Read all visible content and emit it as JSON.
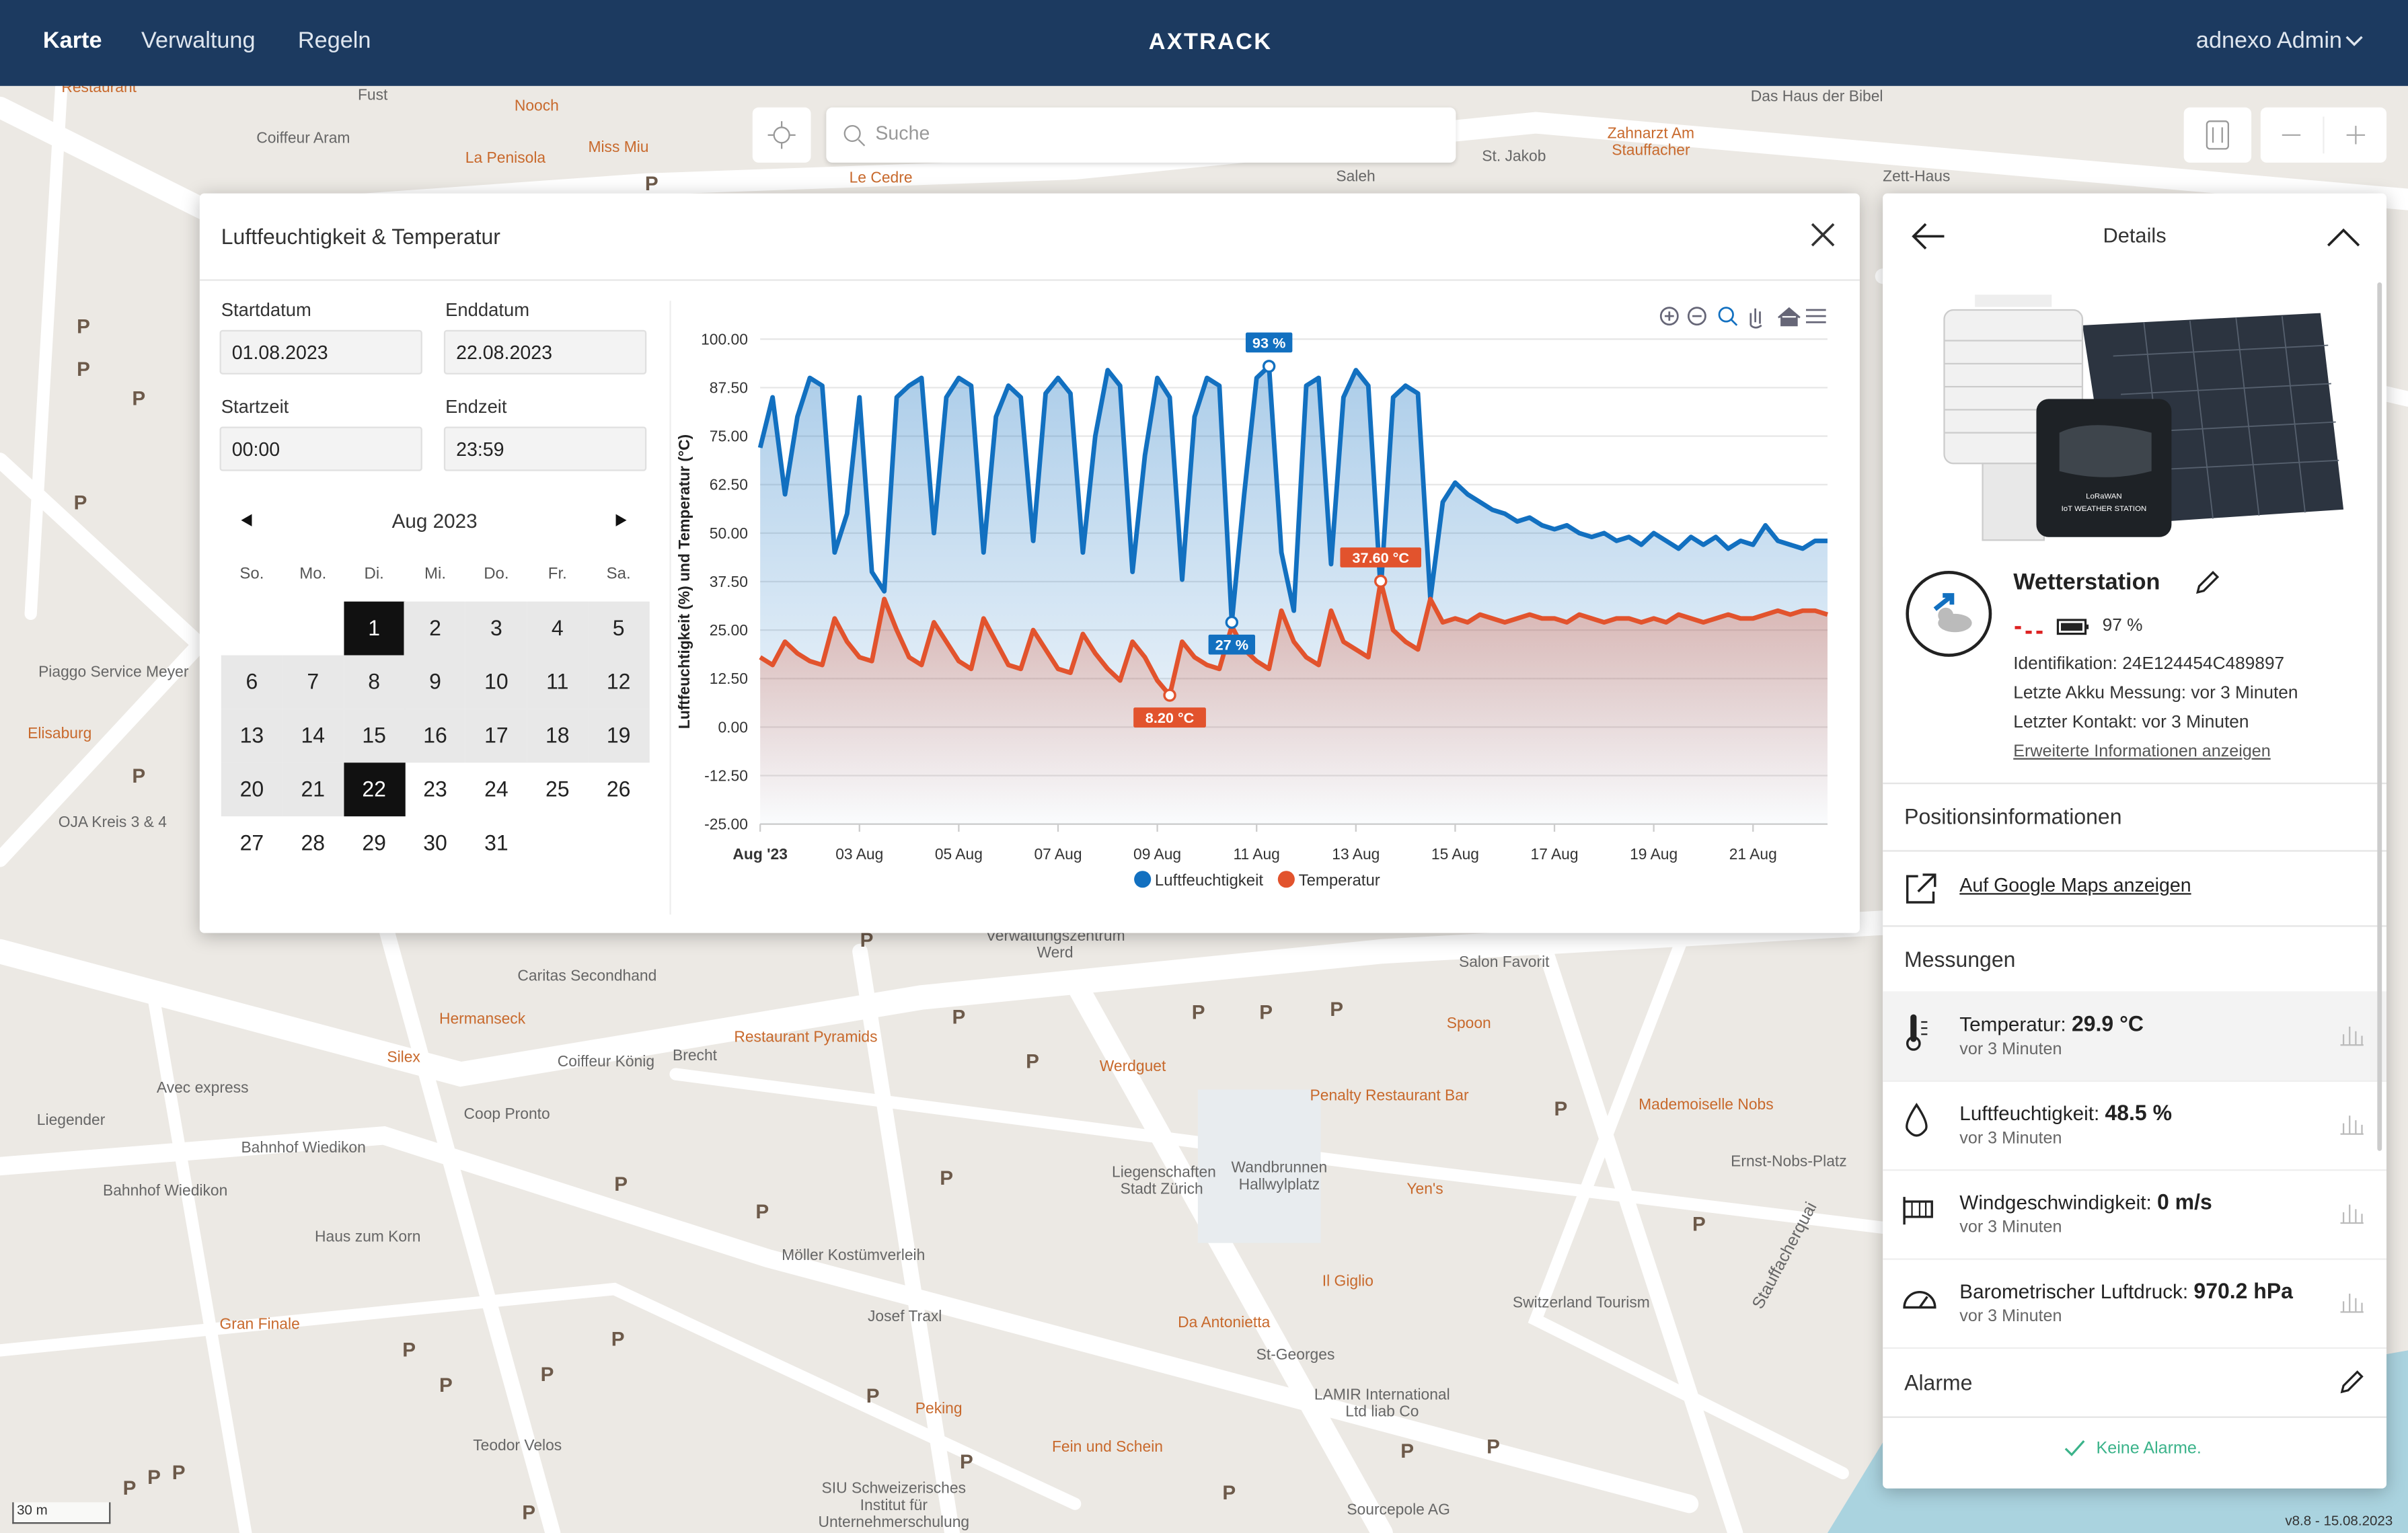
{
  "nav": {
    "items": [
      "Karte",
      "Verwaltung",
      "Regeln"
    ],
    "logo": "AXTRACK",
    "user": "adnexo Admin"
  },
  "search": {
    "placeholder": "Suche"
  },
  "map": {
    "labels": [
      "Restaurant",
      "Fust",
      "Nooch",
      "Coiffeur Aram",
      "La Penisola",
      "Miss Miu",
      "Le Cedre",
      "Saleh",
      "St. Jakob",
      "Zahnarzt Am Stauffacher",
      "Das Haus der Bibel",
      "Zett-Haus",
      "Piaggo Service Meyer",
      "Elisaburg",
      "OJA Kreis 3 & 4",
      "Verwaltungszentrum Werd",
      "Caritas Secondhand",
      "Hermanseck",
      "Silex",
      "Coiffeur König",
      "Brecht",
      "Restaurant Pyramids",
      "Werdguet",
      "Salon Favorit",
      "Spoon",
      "Avec express",
      "Liegender",
      "Coop Pronto",
      "Penalty Restaurant Bar",
      "Mademoiselle Nobs",
      "Bahnhof Wiedikon",
      "Bahnhof Wiedikon",
      "Liegenschaften Stadt Zürich",
      "Wandbrunnen Hallwylplatz",
      "Yen's",
      "Ernst-Nobs-Platz",
      "Haus zum Korn",
      "Möller Kostümverleih",
      "Il Giglio",
      "Switzerland Tourism",
      "Josef Traxl",
      "Gran Finale",
      "Da Antonietta",
      "St-Georges",
      "LAMIR International Ltd liab Co",
      "Peking",
      "Teodor Velos",
      "Fein und Schein",
      "SIU Schweizerisches Institut für Unternehmerschulung",
      "Sourcepole AG",
      "Stauffacherquai"
    ],
    "parking": "P",
    "scale": "30 m",
    "version": "v8.8 - 15.08.2023"
  },
  "modal": {
    "title": "Luftfeuchtigkeit & Temperatur",
    "start_date_label": "Startdatum",
    "start_date": "01.08.2023",
    "end_date_label": "Enddatum",
    "end_date": "22.08.2023",
    "start_time_label": "Startzeit",
    "start_time": "00:00",
    "end_time_label": "Endzeit",
    "end_time": "23:59",
    "calendar": {
      "month": "Aug 2023",
      "weekdays": [
        "So.",
        "Mo.",
        "Di.",
        "Mi.",
        "Do.",
        "Fr.",
        "Sa."
      ],
      "days": [
        1,
        2,
        3,
        4,
        5,
        6,
        7,
        8,
        9,
        10,
        11,
        12,
        13,
        14,
        15,
        16,
        17,
        18,
        19,
        20,
        21,
        22,
        23,
        24,
        25,
        26,
        27,
        28,
        29,
        30,
        31
      ],
      "selected_range": [
        1,
        22
      ]
    }
  },
  "chart_data": {
    "type": "line",
    "y_label": "Luftfeuchtigkeit (%) und Temperatur (°C)",
    "x": [
      "2023-08-01T00:00",
      "2023-08-01T06:00",
      "2023-08-01T12:00",
      "2023-08-01T18:00",
      "2023-08-02T00:00",
      "2023-08-02T06:00",
      "2023-08-02T12:00",
      "2023-08-02T18:00",
      "2023-08-03T00:00",
      "2023-08-03T06:00",
      "2023-08-03T12:00",
      "2023-08-03T18:00",
      "2023-08-04T00:00",
      "2023-08-04T06:00",
      "2023-08-04T12:00",
      "2023-08-04T18:00",
      "2023-08-05T00:00",
      "2023-08-05T06:00",
      "2023-08-05T12:00",
      "2023-08-05T18:00",
      "2023-08-06T00:00",
      "2023-08-06T06:00",
      "2023-08-06T12:00",
      "2023-08-06T18:00",
      "2023-08-07T00:00",
      "2023-08-07T06:00",
      "2023-08-07T12:00",
      "2023-08-07T18:00",
      "2023-08-08T00:00",
      "2023-08-08T06:00",
      "2023-08-08T12:00",
      "2023-08-08T18:00",
      "2023-08-09T00:00",
      "2023-08-09T06:00",
      "2023-08-09T12:00",
      "2023-08-09T18:00",
      "2023-08-10T00:00",
      "2023-08-10T06:00",
      "2023-08-10T12:00",
      "2023-08-10T18:00",
      "2023-08-11T00:00",
      "2023-08-11T06:00",
      "2023-08-11T12:00",
      "2023-08-11T18:00",
      "2023-08-12T00:00",
      "2023-08-12T06:00",
      "2023-08-12T12:00",
      "2023-08-12T18:00",
      "2023-08-13T00:00",
      "2023-08-13T06:00",
      "2023-08-13T12:00",
      "2023-08-13T18:00",
      "2023-08-14T00:00",
      "2023-08-14T06:00",
      "2023-08-14T12:00",
      "2023-08-14T18:00",
      "2023-08-15T00:00",
      "2023-08-15T06:00",
      "2023-08-15T12:00",
      "2023-08-15T18:00",
      "2023-08-16T00:00",
      "2023-08-16T06:00",
      "2023-08-16T12:00",
      "2023-08-16T18:00",
      "2023-08-17T00:00",
      "2023-08-17T06:00",
      "2023-08-17T12:00",
      "2023-08-17T18:00",
      "2023-08-18T00:00",
      "2023-08-18T06:00",
      "2023-08-18T12:00",
      "2023-08-18T18:00",
      "2023-08-19T00:00",
      "2023-08-19T06:00",
      "2023-08-19T12:00",
      "2023-08-19T18:00",
      "2023-08-20T00:00",
      "2023-08-20T06:00",
      "2023-08-20T12:00",
      "2023-08-20T18:00",
      "2023-08-21T00:00",
      "2023-08-21T06:00",
      "2023-08-21T12:00",
      "2023-08-21T18:00",
      "2023-08-22T00:00",
      "2023-08-22T06:00",
      "2023-08-22T12:00"
    ],
    "series": [
      {
        "name": "Luftfeuchtigkeit",
        "color": "#1270c0",
        "values": [
          72,
          85,
          60,
          80,
          90,
          88,
          45,
          55,
          85,
          40,
          35,
          85,
          88,
          90,
          50,
          85,
          90,
          88,
          45,
          80,
          88,
          85,
          48,
          86,
          90,
          86,
          45,
          75,
          92,
          88,
          40,
          70,
          90,
          85,
          38,
          80,
          90,
          88,
          27,
          60,
          90,
          93,
          45,
          30,
          88,
          90,
          42,
          85,
          92,
          88,
          35,
          85,
          88,
          86,
          33,
          58,
          63,
          60,
          58,
          56,
          55,
          53,
          54,
          52,
          51,
          52,
          50,
          49,
          50,
          48,
          49,
          47,
          50,
          48,
          46,
          49,
          47,
          49,
          46,
          48,
          47,
          52,
          48,
          47,
          46,
          48,
          48
        ]
      },
      {
        "name": "Temperatur",
        "color": "#e2532d",
        "values": [
          18,
          16,
          22,
          19,
          17,
          16,
          28,
          22,
          18,
          17,
          33,
          25,
          18,
          16,
          27,
          22,
          17,
          15,
          28,
          22,
          16,
          15,
          25,
          20,
          15,
          14,
          24,
          19,
          15,
          12,
          22,
          18,
          12,
          8.2,
          22,
          18,
          16,
          15,
          26,
          20,
          17,
          15,
          30,
          22,
          18,
          16,
          30,
          22,
          20,
          18,
          37.6,
          25,
          22,
          20,
          33,
          27,
          28,
          27,
          29,
          28,
          27,
          28,
          29,
          28,
          28,
          27,
          29,
          28,
          27,
          28,
          28,
          27,
          28,
          27,
          29,
          28,
          27,
          28,
          29,
          28,
          28,
          29,
          30,
          29,
          30,
          30,
          29
        ]
      }
    ],
    "annotations": [
      {
        "series": 0,
        "x": "2023-08-11T06:00",
        "value": 93,
        "label": "93 %"
      },
      {
        "series": 0,
        "x": "2023-08-10T12:00",
        "value": 27,
        "label": "27 %"
      },
      {
        "series": 1,
        "x": "2023-08-09T06:00",
        "value": 8.2,
        "label": "8.20 °C"
      },
      {
        "series": 1,
        "x": "2023-08-13T12:00",
        "value": 37.6,
        "label": "37.60 °C"
      }
    ],
    "xlim": [
      "2023-08-01T00:00",
      "2023-08-22T12:00"
    ],
    "xticks": [
      {
        "value": "2023-08-01T00:00",
        "label": "Aug '23"
      },
      {
        "value": "2023-08-03T00:00",
        "label": "03 Aug"
      },
      {
        "value": "2023-08-05T00:00",
        "label": "05 Aug"
      },
      {
        "value": "2023-08-07T00:00",
        "label": "07 Aug"
      },
      {
        "value": "2023-08-09T00:00",
        "label": "09 Aug"
      },
      {
        "value": "2023-08-11T00:00",
        "label": "11 Aug"
      },
      {
        "value": "2023-08-13T00:00",
        "label": "13 Aug"
      },
      {
        "value": "2023-08-15T00:00",
        "label": "15 Aug"
      },
      {
        "value": "2023-08-17T00:00",
        "label": "17 Aug"
      },
      {
        "value": "2023-08-19T00:00",
        "label": "19 Aug"
      },
      {
        "value": "2023-08-21T00:00",
        "label": "21 Aug"
      }
    ],
    "ylim": [
      -25,
      100
    ],
    "yticks": [
      {
        "value": -25,
        "label": "-25.00"
      },
      {
        "value": -12.5,
        "label": "-12.50"
      },
      {
        "value": 0,
        "label": "0.00"
      },
      {
        "value": 12.5,
        "label": "12.50"
      },
      {
        "value": 25,
        "label": "25.00"
      },
      {
        "value": 37.5,
        "label": "37.50"
      },
      {
        "value": 50,
        "label": "50.00"
      },
      {
        "value": 62.5,
        "label": "62.50"
      },
      {
        "value": 75,
        "label": "75.00"
      },
      {
        "value": 87.5,
        "label": "87.50"
      },
      {
        "value": 100,
        "label": "100.00"
      }
    ],
    "grid": true,
    "legend": "bottom"
  },
  "panel": {
    "title": "Details",
    "name": "Wetterstation",
    "battery": "97 %",
    "id": "Identifikation: 24E124454C489897",
    "battery_time": "Letzte Akku Messung: vor 3 Minuten",
    "contact": "Letzter Kontakt: vor 3 Minuten",
    "more": "Erweiterte Informationen anzeigen",
    "position": "Positionsinformationen",
    "maps": "Auf Google Maps anzeigen",
    "measurements_title": "Messungen",
    "measurements": [
      {
        "label": "Temperatur:",
        "value": "29.9 °C",
        "time": "vor 3 Minuten"
      },
      {
        "label": "Luftfeuchtigkeit:",
        "value": "48.5 %",
        "time": "vor 3 Minuten"
      },
      {
        "label": "Windgeschwindigkeit:",
        "value": "0 m/s",
        "time": "vor 3 Minuten"
      },
      {
        "label": "Barometrischer Luftdruck:",
        "value": "970.2 hPa",
        "time": "vor 3 Minuten"
      }
    ],
    "alarms": "Alarme",
    "no_alarms": "Keine Alarme.",
    "image_brand": "LoRaWAN",
    "image_caption": "IoT WEATHER STATION"
  }
}
